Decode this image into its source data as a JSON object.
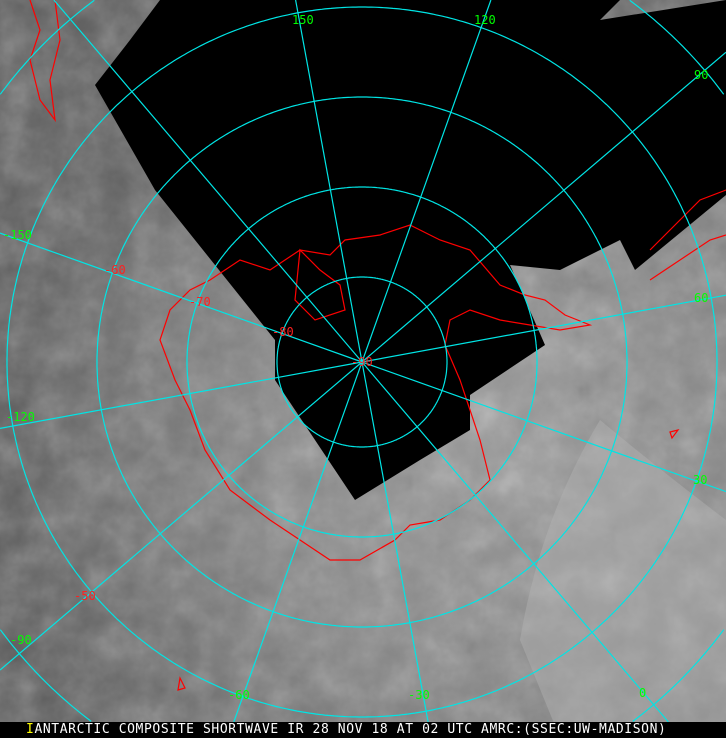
{
  "caption": "ANTARCTIC COMPOSITE SHORTWAVE IR 28 NOV 18 AT 02 UTC AMRC:(SSEC:UW-MADISON)",
  "caption_marker": "I",
  "colors": {
    "grid": "#00e5e5",
    "longitude_labels": "#00ff00",
    "latitude_labels": "#ff2020",
    "coastline": "#ff0000",
    "no_data": "#000000"
  },
  "longitude_labels": [
    {
      "value": "150"
    },
    {
      "value": "120"
    },
    {
      "value": "90"
    },
    {
      "value": "60"
    },
    {
      "value": "30"
    },
    {
      "value": "0"
    },
    {
      "value": "-30"
    },
    {
      "value": "-60"
    },
    {
      "value": "-90"
    },
    {
      "value": "-120"
    },
    {
      "value": "-150"
    }
  ],
  "latitude_labels": [
    {
      "value": "-50"
    },
    {
      "value": "-60"
    },
    {
      "value": "-70"
    },
    {
      "value": "-80"
    },
    {
      "value": "-90"
    }
  ]
}
